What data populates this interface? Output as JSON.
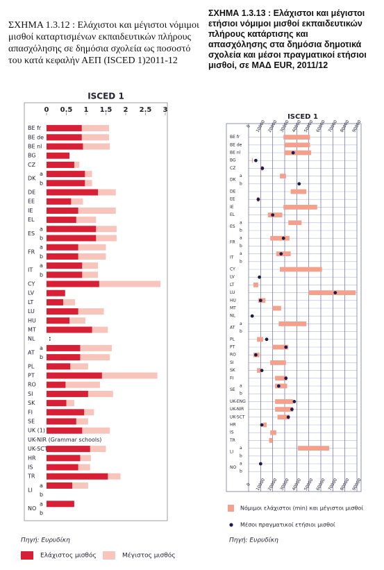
{
  "chart_data": [
    {
      "type": "bar",
      "title": "ΣΧΗΜΑ 1.3.12 : Ελάχιστοι και μέγιστοι νόμιμοι μισθοί καταρτισμένων εκπαιδευτικών πλήρους απασχόλησης σε δημόσια σχολεία ως ποσοστό του κατά κεφαλήν ΑΕΠ (ISCED 1)2011-12",
      "subtitle": "ISCED 1",
      "categories": [
        "BE fr",
        "BE de",
        "BE nl",
        "BG",
        "CZ",
        "a",
        "b",
        "DE",
        "EE",
        "IE",
        "EL",
        "a",
        "b",
        "a",
        "b",
        "a",
        "b",
        "CY",
        "LV",
        "LT",
        "LU",
        "HU",
        "MT",
        "NL",
        "a",
        "b",
        "PL",
        "PT",
        "RO",
        "SI",
        "SK",
        "FI",
        "SE",
        "UK (1)",
        "UK-NIR (Grammar schools)",
        "UK-SCT",
        "HR",
        "IS",
        "TR",
        "a",
        "b",
        "a",
        "b"
      ],
      "group_labels": [
        null,
        null,
        null,
        null,
        null,
        "DK",
        null,
        null,
        null,
        null,
        null,
        "ES",
        null,
        "FR",
        null,
        "IT",
        null,
        null,
        null,
        null,
        null,
        null,
        null,
        null,
        "AT",
        null,
        null,
        null,
        null,
        null,
        null,
        null,
        null,
        null,
        null,
        null,
        null,
        null,
        null,
        "LI",
        null,
        "NO",
        null
      ],
      "series": [
        {
          "name": "Ελάχιστος μισθός",
          "color": "#d71f35",
          "values": [
            0.89,
            0.89,
            0.92,
            0.58,
            0.7,
            0.97,
            0.97,
            1.3,
            0.62,
            0.8,
            0.75,
            1.25,
            1.25,
            0.8,
            0.8,
            0.9,
            0.9,
            1.33,
            0.47,
            0.42,
            0.8,
            0.58,
            1.15,
            null,
            0.85,
            0.85,
            0.6,
            1.4,
            0.48,
            1.05,
            0.5,
            0.95,
            0.75,
            0.9,
            null,
            1.1,
            0.85,
            0.8,
            1.55,
            0.65,
            null,
            0.7,
            null
          ]
        },
        {
          "name": "Μέγιστος μισθός",
          "color": "#f7c5bb",
          "values": [
            1.58,
            1.58,
            1.6,
            null,
            0.83,
            1.15,
            1.15,
            1.75,
            0.92,
            1.75,
            1.25,
            1.77,
            1.77,
            1.5,
            1.5,
            1.3,
            1.3,
            2.88,
            null,
            0.72,
            1.45,
            0.98,
            1.55,
            null,
            1.65,
            1.6,
            1.05,
            2.8,
            1.35,
            1.68,
            0.7,
            1.2,
            1.05,
            1.6,
            null,
            1.5,
            1.12,
            1.1,
            1.87,
            1.05,
            null,
            null,
            null
          ]
        }
      ],
      "annotations": [
        {
          "text": ":",
          "category": "NL"
        }
      ],
      "xlim": [
        0,
        3
      ],
      "xticks": [
        0,
        0.5,
        1,
        1.5,
        2,
        2.5,
        3
      ],
      "source": "Πηγή: Ευρυδίκη"
    },
    {
      "type": "range",
      "title": "ΣΧΗΜΑ 1.3.13 : Ελάχιστοι και μέγιστοι ετήσιοι νόμιμοι μισθοί εκπαιδευτικών πλήρους κατάρτισης και απασχόλησης στα δημόσια δημοτικά σχολεία και μέσοι πραγματικοί ετήσιοι μισθοί, σε ΜΑΔ EUR, 2011/12",
      "subtitle": "ISCED 1",
      "categories": [
        "BE fr",
        "BE de",
        "BE nl",
        "BG",
        "CZ",
        "a",
        "b",
        "DE",
        "EE",
        "IE",
        "EL",
        "a",
        "b",
        "a",
        "b",
        "a",
        "b",
        "CY",
        "LV",
        "LT",
        "LU",
        "HU",
        "MT",
        "NL",
        "a",
        "b",
        "PL",
        "PT",
        "RO",
        "SI",
        "SK",
        "FI",
        "a",
        "b",
        "UK-ENG",
        "UK-NIR",
        "UK-SCT",
        "HR",
        "IS",
        "TR",
        "a",
        "b",
        "a",
        "b"
      ],
      "group_labels": [
        null,
        null,
        null,
        null,
        null,
        "DK",
        null,
        null,
        null,
        null,
        null,
        "ES",
        null,
        "FR",
        null,
        "IT",
        null,
        null,
        null,
        null,
        null,
        null,
        null,
        null,
        "AT",
        null,
        null,
        null,
        null,
        null,
        null,
        null,
        "SE",
        null,
        null,
        null,
        null,
        null,
        null,
        null,
        "LI",
        null,
        "NO",
        null
      ],
      "ranges": {
        "name": "Νόμιμοι ελάχιστοι (min) και μέγιστοι μισθοί",
        "color": "#f4a08a",
        "min": [
          29000,
          30000,
          30000,
          2800,
          10000,
          26000,
          null,
          35000,
          7000,
          29000,
          16000,
          33000,
          null,
          18000,
          null,
          23000,
          null,
          26000,
          null,
          4000,
          50000,
          8000,
          20000,
          null,
          25000,
          null,
          7000,
          20000,
          4000,
          18000,
          7000,
          22000,
          22000,
          null,
          22000,
          22000,
          24000,
          12000,
          18000,
          17000,
          41000,
          null,
          null,
          null
        ],
        "max": [
          51000,
          51000,
          52000,
          3500,
          12000,
          31000,
          null,
          48000,
          9000,
          57000,
          28000,
          44000,
          null,
          34000,
          null,
          35000,
          null,
          61000,
          null,
          8000,
          89000,
          14000,
          27000,
          null,
          48000,
          null,
          12000,
          33000,
          9000,
          31000,
          10000,
          32000,
          32000,
          null,
          37000,
          37000,
          34000,
          15000,
          23000,
          20000,
          67000,
          null,
          null,
          null
        ]
      },
      "series": [
        {
          "name": "Μέσοι πραγματικοί ετήσιοι μισθοί",
          "color": "#1b1b4d",
          "values": [
            null,
            null,
            37000,
            6000,
            11500,
            null,
            42000,
            null,
            8000,
            null,
            20000,
            null,
            null,
            29000,
            null,
            27000,
            null,
            null,
            9000,
            null,
            72000,
            10000,
            null,
            3000,
            null,
            null,
            15000,
            31000,
            6000,
            null,
            11000,
            31000,
            25000,
            null,
            38000,
            36000,
            33000,
            11000,
            null,
            null,
            null,
            null,
            10000,
            null
          ]
        }
      ],
      "xlim": [
        0,
        90000
      ],
      "xticks": [
        0,
        10000,
        20000,
        30000,
        40000,
        50000,
        60000,
        70000,
        80000,
        90000
      ],
      "grid": true,
      "source": "Πηγή: Ευρυδίκη"
    }
  ]
}
